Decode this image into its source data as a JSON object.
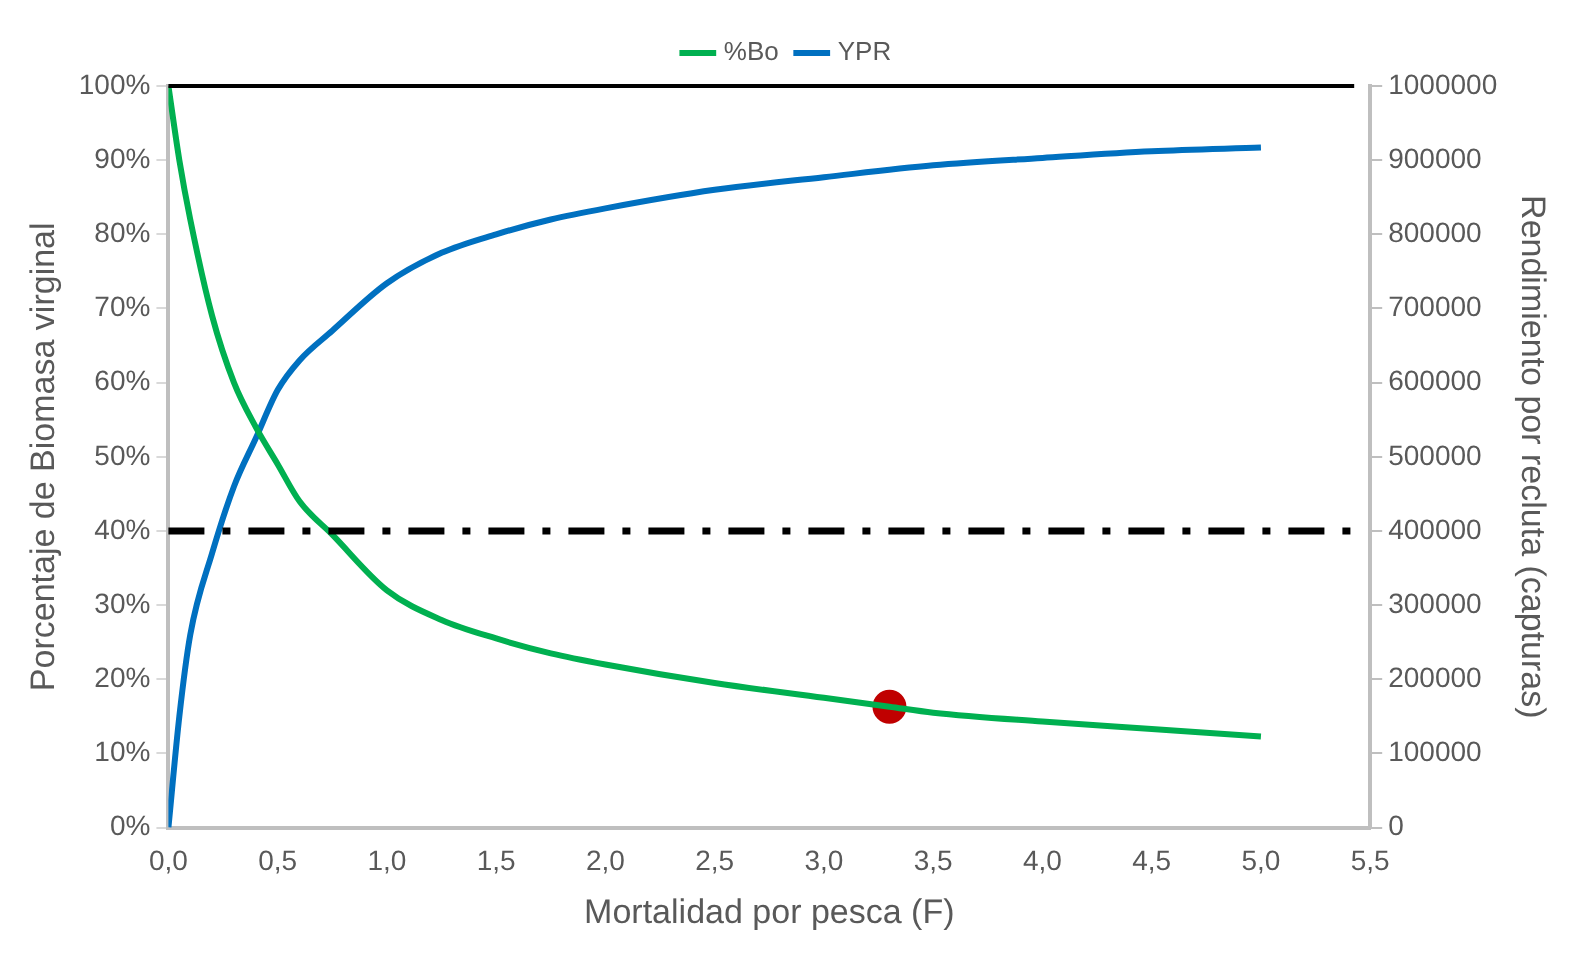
{
  "chart_data": {
    "type": "line",
    "xlabel": "Mortalidad por pesca (F)",
    "ylabel": "Porcentaje de Biomasa virginal",
    "y2label": "Rendimiento por recluta (capturas)",
    "xlim": [
      0,
      5.5
    ],
    "xticks": [
      {
        "value": 0,
        "label": "0,0"
      },
      {
        "value": 0.5,
        "label": "0,5"
      },
      {
        "value": 1,
        "label": "1,0"
      },
      {
        "value": 1.5,
        "label": "1,5"
      },
      {
        "value": 2,
        "label": "2,0"
      },
      {
        "value": 2.5,
        "label": "2,5"
      },
      {
        "value": 3,
        "label": "3,0"
      },
      {
        "value": 3.5,
        "label": "3,5"
      },
      {
        "value": 4,
        "label": "4,0"
      },
      {
        "value": 4.5,
        "label": "4,5"
      },
      {
        "value": 5,
        "label": "5,0"
      },
      {
        "value": 5.5,
        "label": "5,5"
      }
    ],
    "ylim": [
      0,
      100
    ],
    "yticks": [
      {
        "value": 0,
        "label": "0%"
      },
      {
        "value": 10,
        "label": "10%"
      },
      {
        "value": 20,
        "label": "20%"
      },
      {
        "value": 30,
        "label": "30%"
      },
      {
        "value": 40,
        "label": "40%"
      },
      {
        "value": 50,
        "label": "50%"
      },
      {
        "value": 60,
        "label": "60%"
      },
      {
        "value": 70,
        "label": "70%"
      },
      {
        "value": 80,
        "label": "80%"
      },
      {
        "value": 90,
        "label": "90%"
      },
      {
        "value": 100,
        "label": "100%"
      }
    ],
    "y2lim": [
      0,
      1000000
    ],
    "y2ticks": [
      0,
      100000,
      200000,
      300000,
      400000,
      500000,
      600000,
      700000,
      800000,
      900000,
      1000000
    ],
    "grid": false,
    "legend": "top",
    "marker": "none",
    "line_style": "solid",
    "series": [
      {
        "name": "%Bo",
        "color": "#00b050",
        "x": [
          0,
          0.05,
          0.1,
          0.2,
          0.3,
          0.4,
          0.5,
          0.6,
          0.75,
          1,
          1.25,
          1.5,
          1.75,
          2,
          2.5,
          3,
          3.3,
          3.5,
          4,
          4.5,
          5
        ],
        "values": [
          100,
          90,
          82,
          69,
          60,
          54,
          49,
          44,
          39.5,
          32,
          28,
          25.5,
          23.5,
          22,
          19.5,
          17.5,
          16.3,
          15.5,
          14.3,
          13.3,
          12.3
        ]
      },
      {
        "name": "YPR",
        "color": "#0070c0",
        "axis": "y2",
        "x": [
          0,
          0.05,
          0.1,
          0.2,
          0.3,
          0.4,
          0.5,
          0.6,
          0.75,
          1,
          1.25,
          1.5,
          1.75,
          2,
          2.5,
          3,
          3.5,
          4,
          4.5,
          5
        ],
        "values": [
          0,
          150000,
          260000,
          370000,
          460000,
          525000,
          590000,
          630000,
          670000,
          734000,
          775000,
          800000,
          820000,
          835000,
          860000,
          877000,
          893000,
          903000,
          912000,
          917000
        ]
      },
      {
        "type": "scatter",
        "color": "#c00000",
        "marker": "circle",
        "x": [
          3.3
        ],
        "values": [
          16.3
        ]
      }
    ],
    "ref_lines": [
      {
        "axis": "y",
        "value": 100,
        "color": "#000000",
        "line_style": "solid"
      },
      {
        "axis": "y",
        "value": 40,
        "color": "#000000",
        "line_style": "dashed"
      }
    ]
  }
}
